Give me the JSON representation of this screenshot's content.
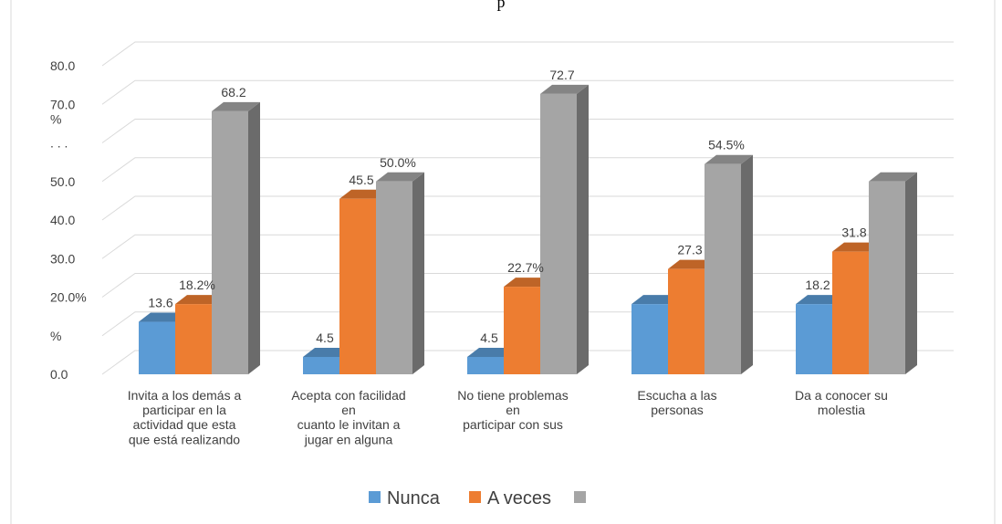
{
  "chart_data": {
    "type": "bar3d",
    "title": "p",
    "categories": [
      "Invita a los demás a\nparticipar en la\nactividad que esta\nque está realizando",
      "Acepta con facilidad\nen\ncuanto le invitan a\njugar en alguna",
      "No tiene problemas\nen\nparticipar con sus",
      "Escucha a las\npersonas",
      "Da a conocer su\nmolestia"
    ],
    "series": [
      {
        "name": "Nunca",
        "color": "#5b9bd5",
        "values": [
          13.6,
          4.5,
          4.5,
          18.2,
          18.2
        ],
        "value_labels": [
          "13.6",
          "4.5",
          "4.5",
          null,
          "18.2"
        ]
      },
      {
        "name": "A veces",
        "color": "#ed7d31",
        "values": [
          18.2,
          45.5,
          22.7,
          27.3,
          31.8
        ],
        "value_labels": [
          "18.2%",
          "45.5",
          "22.7%",
          "27.3",
          "31.8"
        ]
      },
      {
        "name": null,
        "color": "#a5a5a5",
        "values": [
          68.2,
          50.0,
          72.7,
          54.5,
          50.0
        ],
        "value_labels": [
          "68.2",
          "50.0%",
          "72.7",
          "54.5%",
          null
        ]
      }
    ],
    "ylim": [
      0,
      80
    ],
    "yticks": [
      {
        "value": 0,
        "label": "0.0"
      },
      {
        "value": 10,
        "label": "%"
      },
      {
        "value": 20,
        "label": "20.0%"
      },
      {
        "value": 30,
        "label": "30.0"
      },
      {
        "value": 40,
        "label": "40.0"
      },
      {
        "value": 50,
        "label": "50.0"
      },
      {
        "value": 60,
        "label": ". . ."
      },
      {
        "value": 70,
        "label": "70.0\n%"
      },
      {
        "value": 80,
        "label": "80.0"
      }
    ],
    "grid": true,
    "legend": "bottom"
  }
}
